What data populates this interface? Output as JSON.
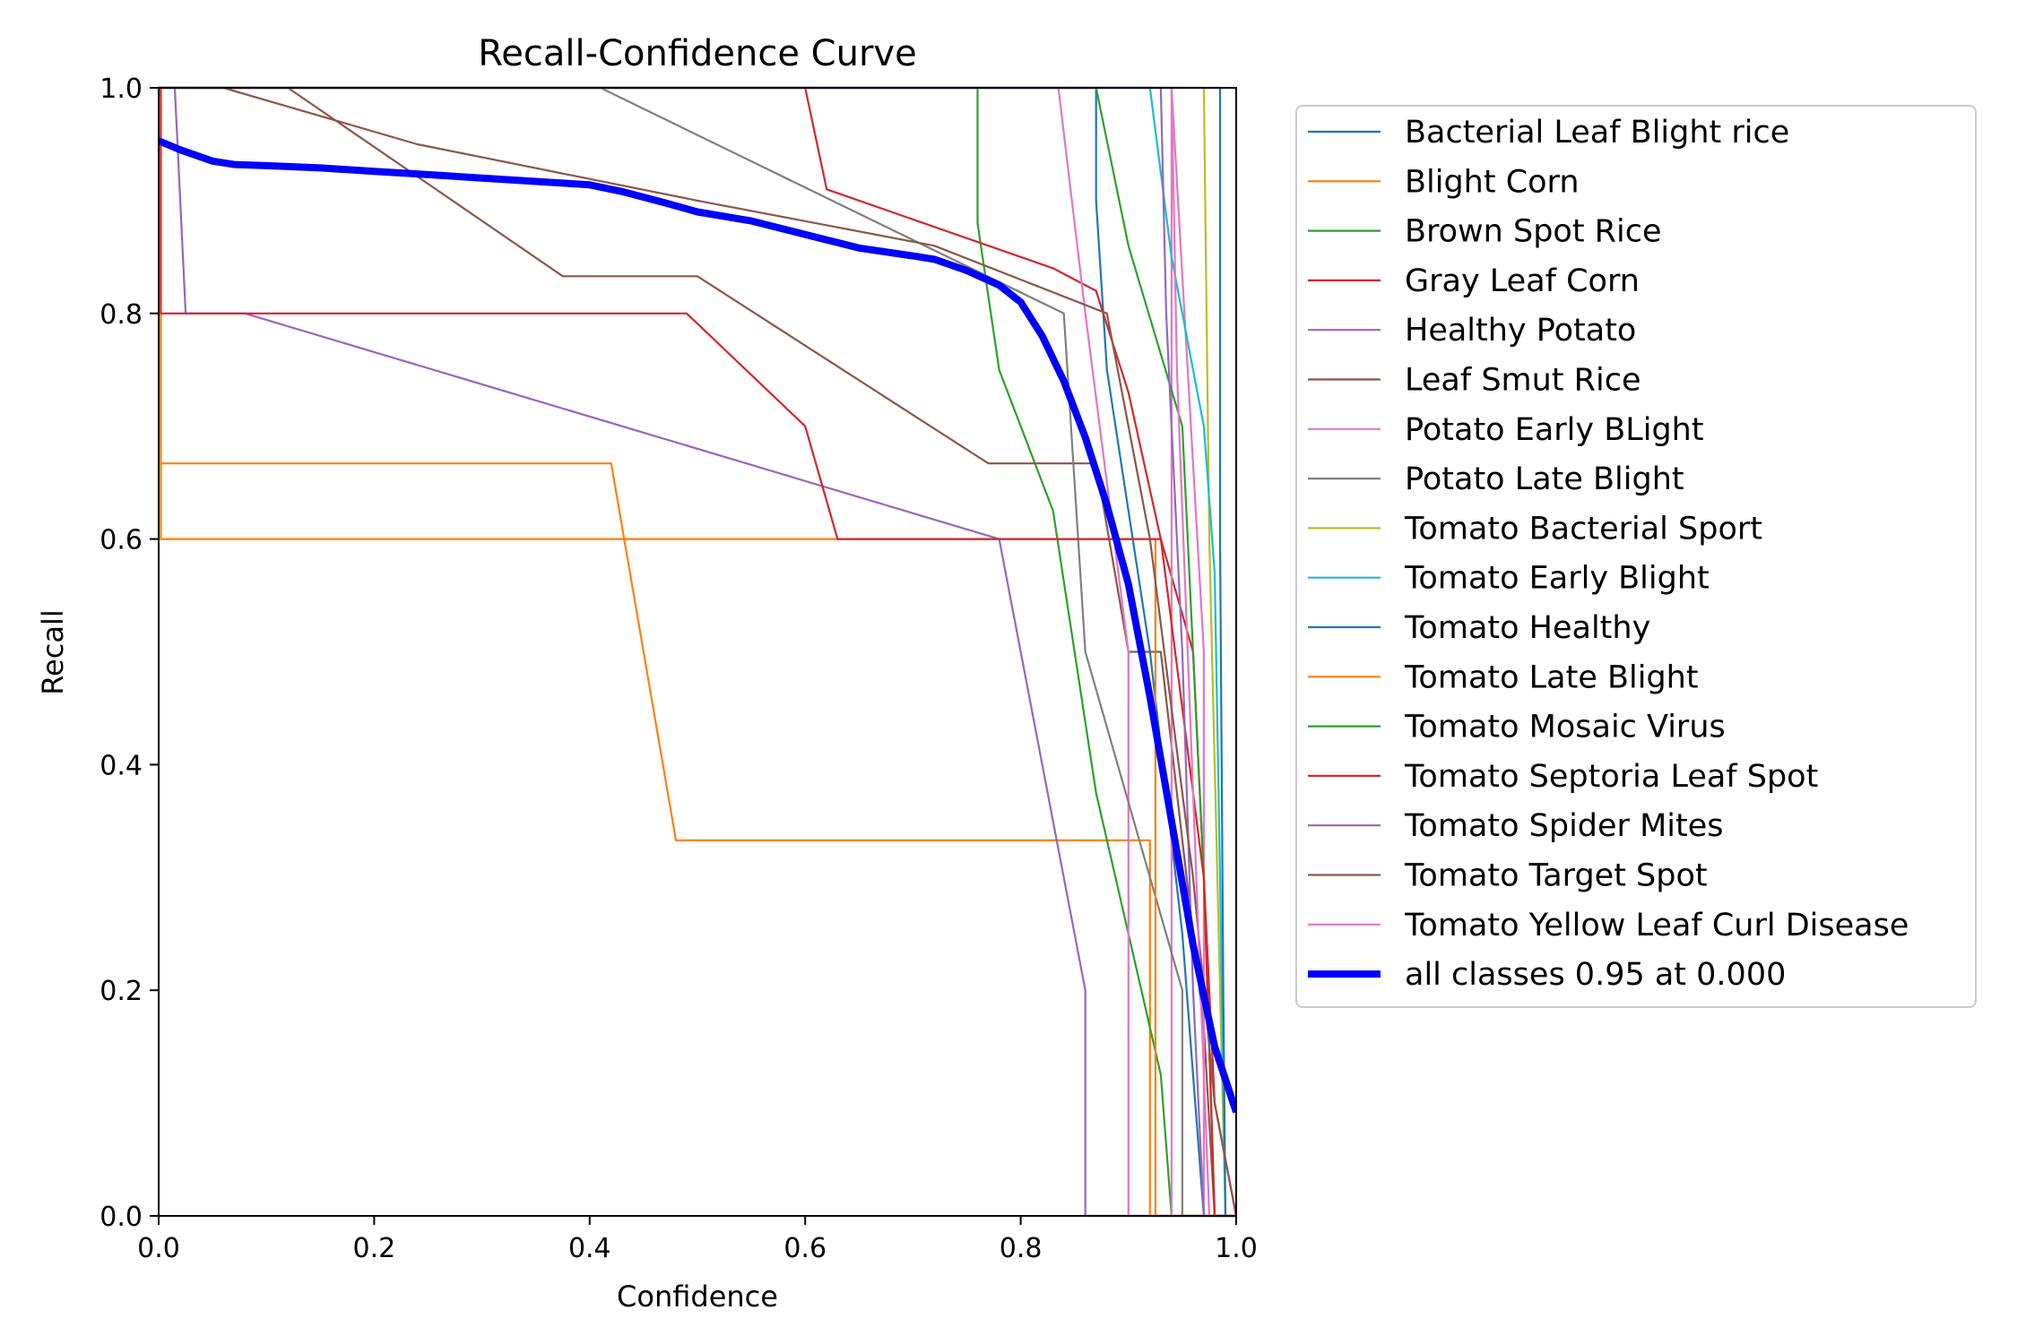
{
  "chart_data": {
    "type": "line",
    "title": "Recall-Confidence Curve",
    "xlabel": "Confidence",
    "ylabel": "Recall",
    "xlim": [
      0,
      1
    ],
    "ylim": [
      0,
      1
    ],
    "xticks": [
      "0.0",
      "0.2",
      "0.4",
      "0.6",
      "0.8",
      "1.0"
    ],
    "yticks": [
      "0.0",
      "0.2",
      "0.4",
      "0.6",
      "0.8",
      "1.0"
    ],
    "grid": false,
    "legend_position": "outside-right",
    "series": [
      {
        "name": "Bacterial Leaf Blight rice",
        "color": "#1f77b4",
        "x": [
          0.0,
          0.87,
          0.87,
          0.88,
          0.92,
          0.95,
          0.97,
          1.0
        ],
        "y": [
          1.0,
          1.0,
          0.9,
          0.75,
          0.5,
          0.25,
          0.0,
          0.0
        ]
      },
      {
        "name": "Blight Corn",
        "color": "#ff7f0e",
        "x": [
          0.0,
          0.002,
          0.002,
          0.42,
          0.48,
          0.92,
          0.92,
          1.0
        ],
        "y": [
          1.0,
          1.0,
          0.667,
          0.667,
          0.333,
          0.333,
          0.0,
          0.0
        ]
      },
      {
        "name": "Brown Spot Rice",
        "color": "#2ca02c",
        "x": [
          0.0,
          0.76,
          0.76,
          0.78,
          0.83,
          0.85,
          0.87,
          0.9,
          0.93,
          0.94,
          0.94,
          1.0
        ],
        "y": [
          1.0,
          1.0,
          0.88,
          0.75,
          0.625,
          0.5,
          0.375,
          0.25,
          0.125,
          0.0,
          0.0,
          0.0
        ]
      },
      {
        "name": "Gray Leaf Corn",
        "color": "#d62728",
        "x": [
          0.0,
          0.6,
          0.62,
          0.83,
          0.87,
          0.9,
          0.93,
          0.96,
          0.97,
          0.98,
          1.0
        ],
        "y": [
          1.0,
          1.0,
          0.91,
          0.84,
          0.82,
          0.73,
          0.6,
          0.5,
          0.3,
          0.1,
          0.0
        ]
      },
      {
        "name": "Healthy Potato",
        "color": "#9467bd",
        "x": [
          0.0,
          0.015,
          0.025,
          0.08,
          0.78,
          0.86,
          0.86,
          1.0
        ],
        "y": [
          1.0,
          1.0,
          0.8,
          0.8,
          0.6,
          0.2,
          0.0,
          0.0
        ]
      },
      {
        "name": "Leaf Smut Rice",
        "color": "#8c564b",
        "x": [
          0.0,
          0.12,
          0.375,
          0.5,
          0.77,
          0.87,
          0.9,
          0.93,
          0.95,
          0.97,
          0.98,
          1.0
        ],
        "y": [
          1.0,
          1.0,
          0.833,
          0.833,
          0.667,
          0.667,
          0.5,
          0.5,
          0.333,
          0.167,
          0.0,
          0.0
        ]
      },
      {
        "name": "Potato Early BLight",
        "color": "#e377c2",
        "x": [
          0.0,
          0.835,
          0.86,
          0.9,
          0.9,
          0.94,
          0.94,
          0.97,
          0.97,
          1.0
        ],
        "y": [
          1.0,
          1.0,
          0.8,
          0.5,
          0.0,
          0.0,
          1.0,
          0.5,
          0.0,
          0.0
        ]
      },
      {
        "name": "Potato Late Blight",
        "color": "#7f7f7f",
        "x": [
          0.0,
          0.41,
          0.84,
          0.86,
          0.95,
          0.95,
          1.0
        ],
        "y": [
          1.0,
          1.0,
          0.8,
          0.5,
          0.2,
          0.0,
          0.0
        ]
      },
      {
        "name": "Tomato Bacterial Sport",
        "color": "#bcbd22",
        "x": [
          0.0,
          0.97,
          0.975,
          0.985,
          0.99,
          1.0
        ],
        "y": [
          1.0,
          1.0,
          0.6,
          0.2,
          0.0,
          0.0
        ]
      },
      {
        "name": "Tomato Early Blight",
        "color": "#17becf",
        "x": [
          0.0,
          0.92,
          0.94,
          0.97,
          0.98,
          0.985,
          0.99,
          1.0
        ],
        "y": [
          1.0,
          1.0,
          0.85,
          0.7,
          0.57,
          0.3,
          0.0,
          0.0
        ]
      },
      {
        "name": "Tomato Healthy",
        "color": "#1f77b4",
        "x": [
          0.0,
          0.985,
          0.985,
          0.988,
          0.99,
          1.0
        ],
        "y": [
          1.0,
          1.0,
          0.6,
          0.2,
          0.0,
          0.0
        ]
      },
      {
        "name": "Tomato Late Blight",
        "color": "#ff7f0e",
        "x": [
          0.0,
          0.002,
          0.002,
          0.925,
          0.925,
          1.0
        ],
        "y": [
          1.0,
          1.0,
          0.6,
          0.6,
          0.0,
          0.0
        ]
      },
      {
        "name": "Tomato Mosaic Virus",
        "color": "#2ca02c",
        "x": [
          0.0,
          0.87,
          0.9,
          0.95,
          0.96,
          0.97,
          0.98,
          1.0
        ],
        "y": [
          1.0,
          1.0,
          0.86,
          0.7,
          0.5,
          0.3,
          0.0,
          0.0
        ]
      },
      {
        "name": "Tomato Septoria Leaf Spot",
        "color": "#d62728",
        "x": [
          0.0,
          0.002,
          0.002,
          0.49,
          0.6,
          0.63,
          0.93,
          0.97,
          0.98,
          1.0
        ],
        "y": [
          1.0,
          1.0,
          0.8,
          0.8,
          0.7,
          0.6,
          0.6,
          0.3,
          0.0,
          0.0
        ]
      },
      {
        "name": "Tomato Spider Mites",
        "color": "#9467bd",
        "x": [
          0.0,
          0.93,
          0.935,
          0.95,
          0.96,
          0.97,
          1.0
        ],
        "y": [
          1.0,
          1.0,
          0.8,
          0.5,
          0.2,
          0.0,
          0.0
        ]
      },
      {
        "name": "Tomato Target Spot",
        "color": "#8c564b",
        "x": [
          0.0,
          0.06,
          0.24,
          0.5,
          0.72,
          0.88,
          0.92,
          0.96,
          0.98,
          1.0
        ],
        "y": [
          1.0,
          1.0,
          0.95,
          0.9,
          0.86,
          0.8,
          0.6,
          0.3,
          0.1,
          0.0
        ]
      },
      {
        "name": "Tomato Yellow Leaf Curl Disease",
        "color": "#e377c2",
        "x": [
          0.0,
          0.94,
          0.945,
          0.955,
          0.965,
          0.975,
          1.0
        ],
        "y": [
          1.0,
          1.0,
          0.75,
          0.5,
          0.25,
          0.0,
          0.0
        ]
      },
      {
        "name": "all classes 0.95 at 0.000",
        "color": "#0000ff",
        "thick": true,
        "x": [
          0.0,
          0.02,
          0.05,
          0.07,
          0.1,
          0.15,
          0.2,
          0.25,
          0.3,
          0.35,
          0.4,
          0.43,
          0.47,
          0.5,
          0.55,
          0.6,
          0.65,
          0.7,
          0.72,
          0.75,
          0.78,
          0.8,
          0.82,
          0.84,
          0.86,
          0.88,
          0.9,
          0.92,
          0.94,
          0.96,
          0.98,
          1.0
        ],
        "y": [
          0.953,
          0.945,
          0.935,
          0.932,
          0.931,
          0.929,
          0.926,
          0.923,
          0.92,
          0.917,
          0.914,
          0.908,
          0.898,
          0.89,
          0.882,
          0.87,
          0.858,
          0.851,
          0.848,
          0.838,
          0.825,
          0.81,
          0.78,
          0.74,
          0.69,
          0.63,
          0.56,
          0.46,
          0.35,
          0.24,
          0.15,
          0.092
        ]
      }
    ]
  }
}
